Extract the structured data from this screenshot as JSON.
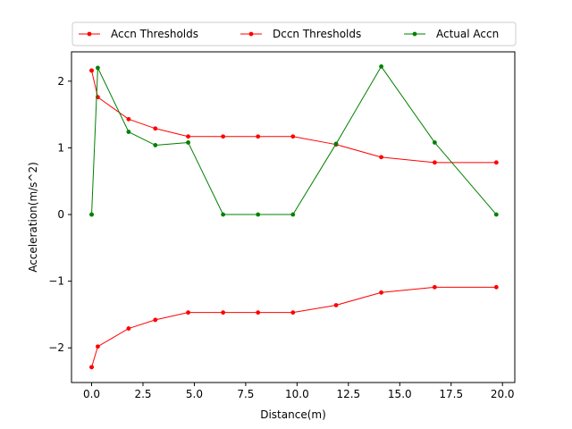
{
  "chart_data": {
    "type": "line",
    "title": "",
    "xlabel": "Distance(m)",
    "ylabel": "Acceleration(m/s^2)",
    "xlim": [
      -0.98,
      20.6
    ],
    "ylim": [
      -2.52,
      2.44
    ],
    "x_ticks": [
      0.0,
      2.5,
      5.0,
      7.5,
      10.0,
      12.5,
      15.0,
      17.5,
      20.0
    ],
    "x_tick_labels": [
      "0.0",
      "2.5",
      "5.0",
      "7.5",
      "10.0",
      "12.5",
      "15.0",
      "17.5",
      "20.0"
    ],
    "y_ticks": [
      -2,
      -1,
      0,
      1,
      2
    ],
    "y_tick_labels": [
      "−2",
      "−1",
      "0",
      "1",
      "2"
    ],
    "grid": false,
    "legend_position": "top, above plot",
    "series": [
      {
        "name": "Accn Thresholds",
        "color": "#ff0000",
        "points": [
          [
            0,
            2.16
          ],
          [
            0,
            2.16
          ],
          [
            0.3,
            1.76
          ],
          [
            1.8,
            1.43
          ],
          [
            3.1,
            1.29
          ],
          [
            4.7,
            1.17
          ],
          [
            6.4,
            1.17
          ],
          [
            8.1,
            1.17
          ],
          [
            9.8,
            1.17
          ],
          [
            11.9,
            1.05
          ],
          [
            14.1,
            0.86
          ],
          [
            16.7,
            0.78
          ],
          [
            19.7,
            0.78
          ]
        ]
      },
      {
        "name": "Dccn Thresholds",
        "color": "#ff0000",
        "points": [
          [
            0,
            -2.29
          ],
          [
            0,
            -2.29
          ],
          [
            0.3,
            -1.98
          ],
          [
            1.8,
            -1.71
          ],
          [
            3.1,
            -1.58
          ],
          [
            4.7,
            -1.47
          ],
          [
            6.4,
            -1.47
          ],
          [
            8.1,
            -1.47
          ],
          [
            9.8,
            -1.47
          ],
          [
            11.9,
            -1.36
          ],
          [
            14.1,
            -1.17
          ],
          [
            16.7,
            -1.09
          ],
          [
            19.7,
            -1.09
          ]
        ]
      },
      {
        "name": "Actual Accn",
        "color": "#008000",
        "points": [
          [
            0,
            0
          ],
          [
            0,
            0
          ],
          [
            0.3,
            2.2
          ],
          [
            1.8,
            1.24
          ],
          [
            3.1,
            1.04
          ],
          [
            4.7,
            1.08
          ],
          [
            6.4,
            0
          ],
          [
            8.1,
            0
          ],
          [
            9.8,
            0
          ],
          [
            11.9,
            1.06
          ],
          [
            14.1,
            2.22
          ],
          [
            16.7,
            1.08
          ],
          [
            19.7,
            0
          ]
        ]
      }
    ]
  }
}
